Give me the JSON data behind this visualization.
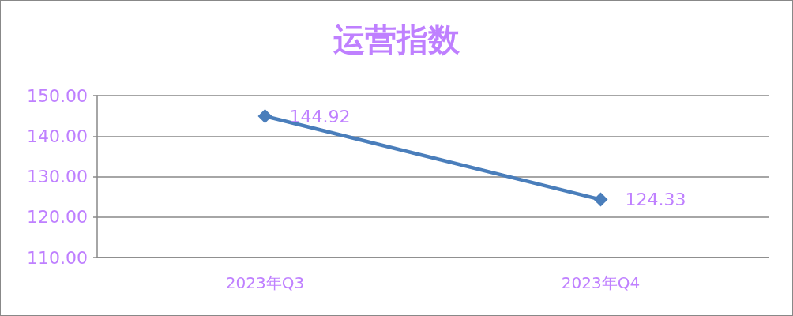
{
  "chart_data": {
    "type": "line",
    "title": "运营指数",
    "categories": [
      "2023年Q3",
      "2023年Q4"
    ],
    "series": [
      {
        "color": "#4a7ebb",
        "values": [
          144.92,
          124.33
        ]
      }
    ],
    "ylim": [
      110,
      150
    ],
    "yticks": [
      {
        "value": 110,
        "label": "110.00"
      },
      {
        "value": 120,
        "label": "120.00"
      },
      {
        "value": 130,
        "label": "130.00"
      },
      {
        "value": 140,
        "label": "140.00"
      },
      {
        "value": 150,
        "label": "150.00"
      }
    ],
    "grid": "y",
    "marker": "diamond",
    "line_style": "solid",
    "data_labels": true
  }
}
